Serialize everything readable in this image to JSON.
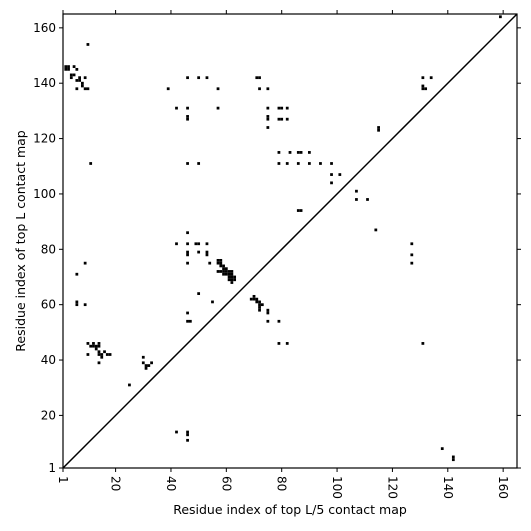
{
  "chart_data": {
    "type": "scatter",
    "title": "",
    "xlabel": "Residue index of top L/5 contact map",
    "ylabel": "Residue index of top L contact map",
    "xlim": [
      1,
      165
    ],
    "ylim": [
      1,
      165
    ],
    "x_ticks": [
      1,
      20,
      40,
      60,
      80,
      100,
      120,
      140,
      160
    ],
    "y_ticks": [
      1,
      20,
      40,
      60,
      80,
      100,
      120,
      140,
      160
    ],
    "x_tick_labels": [
      "1",
      "20",
      "40",
      "60",
      "80",
      "100",
      "120",
      "140",
      "160"
    ],
    "y_tick_labels": [
      "1",
      "20",
      "40",
      "60",
      "80",
      "100",
      "120",
      "140",
      "160"
    ],
    "grid": false,
    "diagonal": true,
    "colors": {
      "marker": "#000000",
      "diagonal": "#000000",
      "background": "#ffffff"
    },
    "points": [
      [
        2,
        146
      ],
      [
        3,
        146
      ],
      [
        3,
        145
      ],
      [
        2,
        145
      ],
      [
        4,
        143
      ],
      [
        4,
        142
      ],
      [
        5,
        143
      ],
      [
        5,
        146
      ],
      [
        6,
        145
      ],
      [
        6,
        141
      ],
      [
        6,
        138
      ],
      [
        7,
        141
      ],
      [
        7,
        142
      ],
      [
        8,
        140
      ],
      [
        8,
        139
      ],
      [
        9,
        138
      ],
      [
        9,
        142
      ],
      [
        10,
        138
      ],
      [
        10,
        154
      ],
      [
        11,
        111
      ],
      [
        6,
        71
      ],
      [
        6,
        61
      ],
      [
        6,
        60
      ],
      [
        9,
        75
      ],
      [
        9,
        60
      ],
      [
        10,
        46
      ],
      [
        11,
        45
      ],
      [
        12,
        46
      ],
      [
        12,
        45
      ],
      [
        13,
        45
      ],
      [
        13,
        44
      ],
      [
        14,
        46
      ],
      [
        14,
        45
      ],
      [
        14,
        43
      ],
      [
        14,
        42
      ],
      [
        15,
        42
      ],
      [
        15,
        41
      ],
      [
        16,
        43
      ],
      [
        17,
        42
      ],
      [
        18,
        42
      ],
      [
        10,
        42
      ],
      [
        14,
        39
      ],
      [
        25,
        31
      ],
      [
        30,
        41
      ],
      [
        30,
        39
      ],
      [
        31,
        38
      ],
      [
        31,
        37
      ],
      [
        32,
        38
      ],
      [
        33,
        39
      ],
      [
        39,
        138
      ],
      [
        42,
        131
      ],
      [
        42,
        82
      ],
      [
        42,
        14
      ],
      [
        46,
        142
      ],
      [
        46,
        131
      ],
      [
        46,
        128
      ],
      [
        46,
        127
      ],
      [
        46,
        111
      ],
      [
        46,
        86
      ],
      [
        46,
        82
      ],
      [
        46,
        79
      ],
      [
        46,
        78
      ],
      [
        46,
        75
      ],
      [
        46,
        57
      ],
      [
        46,
        54
      ],
      [
        47,
        54
      ],
      [
        46,
        14
      ],
      [
        46,
        13
      ],
      [
        46,
        11
      ],
      [
        50,
        142
      ],
      [
        50,
        111
      ],
      [
        49,
        82
      ],
      [
        50,
        82
      ],
      [
        50,
        79
      ],
      [
        50,
        64
      ],
      [
        53,
        142
      ],
      [
        53,
        82
      ],
      [
        53,
        79
      ],
      [
        53,
        78
      ],
      [
        54,
        75
      ],
      [
        55,
        61
      ],
      [
        57,
        138
      ],
      [
        57,
        131
      ],
      [
        57,
        76
      ],
      [
        57,
        75
      ],
      [
        58,
        76
      ],
      [
        58,
        75
      ],
      [
        58,
        74
      ],
      [
        57,
        72
      ],
      [
        58,
        72
      ],
      [
        59,
        74
      ],
      [
        59,
        73
      ],
      [
        59,
        72
      ],
      [
        59,
        71
      ],
      [
        60,
        73
      ],
      [
        60,
        72
      ],
      [
        60,
        71
      ],
      [
        61,
        72
      ],
      [
        61,
        71
      ],
      [
        61,
        70
      ],
      [
        61,
        69
      ],
      [
        62,
        72
      ],
      [
        62,
        71
      ],
      [
        62,
        70
      ],
      [
        62,
        69
      ],
      [
        62,
        68
      ],
      [
        63,
        70
      ],
      [
        63,
        69
      ],
      [
        69,
        62
      ],
      [
        70,
        63
      ],
      [
        70,
        62
      ],
      [
        71,
        62
      ],
      [
        71,
        61
      ],
      [
        72,
        61
      ],
      [
        72,
        60
      ],
      [
        72,
        59
      ],
      [
        72,
        58
      ],
      [
        73,
        60
      ],
      [
        75,
        58
      ],
      [
        75,
        57
      ],
      [
        75,
        54
      ],
      [
        79,
        54
      ],
      [
        79,
        46
      ],
      [
        82,
        46
      ],
      [
        71,
        142
      ],
      [
        72,
        142
      ],
      [
        72,
        138
      ],
      [
        75,
        138
      ],
      [
        75,
        131
      ],
      [
        75,
        128
      ],
      [
        75,
        127
      ],
      [
        75,
        124
      ],
      [
        79,
        131
      ],
      [
        80,
        131
      ],
      [
        79,
        127
      ],
      [
        80,
        127
      ],
      [
        82,
        131
      ],
      [
        82,
        127
      ],
      [
        79,
        115
      ],
      [
        79,
        111
      ],
      [
        82,
        111
      ],
      [
        83,
        115
      ],
      [
        86,
        115
      ],
      [
        87,
        115
      ],
      [
        86,
        111
      ],
      [
        86,
        94
      ],
      [
        87,
        94
      ],
      [
        90,
        115
      ],
      [
        90,
        111
      ],
      [
        94,
        111
      ],
      [
        98,
        111
      ],
      [
        98,
        107
      ],
      [
        98,
        104
      ],
      [
        101,
        107
      ],
      [
        107,
        101
      ],
      [
        107,
        98
      ],
      [
        111,
        98
      ],
      [
        114,
        87
      ],
      [
        115,
        124
      ],
      [
        115,
        123
      ],
      [
        127,
        82
      ],
      [
        127,
        78
      ],
      [
        127,
        75
      ],
      [
        131,
        142
      ],
      [
        131,
        139
      ],
      [
        131,
        138
      ],
      [
        132,
        138
      ],
      [
        134,
        142
      ],
      [
        131,
        46
      ],
      [
        138,
        8
      ],
      [
        142,
        5
      ],
      [
        142,
        4
      ],
      [
        159,
        164
      ]
    ]
  }
}
